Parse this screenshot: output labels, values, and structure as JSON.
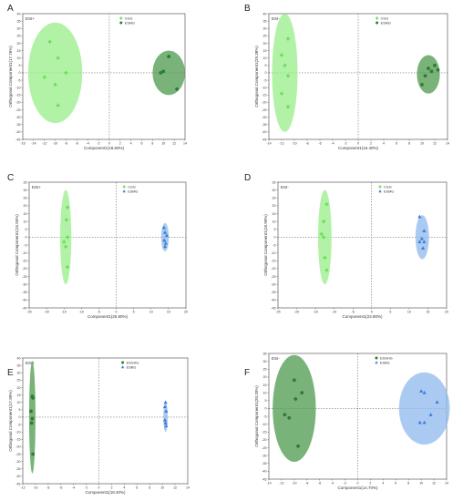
{
  "figure": {
    "panels": [
      {
        "letter": "A",
        "mode": "ESI+"
      },
      {
        "letter": "B",
        "mode": "ESI-"
      },
      {
        "letter": "C",
        "mode": "ESI+"
      },
      {
        "letter": "D",
        "mode": "ESI-"
      },
      {
        "letter": "E",
        "mode": "ESI+"
      },
      {
        "letter": "F",
        "mode": "ESI-"
      }
    ]
  },
  "colors": {
    "green_light": "#66dd55",
    "green_dark": "#2e7d32",
    "blue": "#3a7fd5",
    "blue_fill": "#8fb8ee",
    "green_fill": "#98ee88",
    "dark_green_fill": "#4c9a4c"
  },
  "chart_data": [
    {
      "type": "scatter",
      "panel": "A",
      "mode": "ESI+",
      "xlabel": "Component1(18.60%)",
      "ylabel": "Orthogonal Component1(17.76%)",
      "xlim": [
        -16,
        14
      ],
      "ylim": [
        -45,
        40
      ],
      "xticks": [
        -16,
        -14,
        -12,
        -10,
        -8,
        -6,
        -4,
        -2,
        0,
        2,
        4,
        6,
        8,
        10,
        12,
        14
      ],
      "yticks": [
        -45,
        -40,
        -35,
        -30,
        -25,
        -20,
        -15,
        -10,
        -5,
        0,
        5,
        10,
        15,
        20,
        25,
        30,
        35,
        40
      ],
      "series": [
        {
          "name": "CGG",
          "marker": "plus",
          "color": "#66dd55",
          "fill": "#98ee88",
          "x": [
            -11,
            -9.5,
            -8,
            -12,
            -10,
            -9.5
          ],
          "y": [
            21,
            10,
            0,
            -3,
            -8,
            -22
          ],
          "ellipse": {
            "cx": -10,
            "cy": 0,
            "rx": 5,
            "ry": 34
          }
        },
        {
          "name": "ESMG",
          "marker": "circle",
          "color": "#2e7d32",
          "fill": "#4c9a4c",
          "x": [
            11,
            10,
            12.5,
            9.5
          ],
          "y": [
            11,
            1,
            -11,
            0
          ],
          "ellipse": {
            "cx": 11,
            "cy": 0,
            "rx": 3,
            "ry": 15
          }
        }
      ]
    },
    {
      "type": "scatter",
      "panel": "B",
      "mode": "ESI-",
      "xlabel": "Component1(16.40%)",
      "ylabel": "Orthogonal Component1(29.38%)",
      "xlim": [
        -14,
        14
      ],
      "ylim": [
        -45,
        40
      ],
      "xticks": [
        -14,
        -12,
        -10,
        -8,
        -6,
        -4,
        -2,
        0,
        2,
        4,
        6,
        8,
        10,
        12,
        14
      ],
      "yticks": [
        -45,
        -40,
        -35,
        -30,
        -25,
        -20,
        -15,
        -10,
        -5,
        0,
        5,
        10,
        15,
        20,
        25,
        30,
        35,
        40
      ],
      "series": [
        {
          "name": "CGG",
          "marker": "plus",
          "color": "#66dd55",
          "fill": "#98ee88",
          "x": [
            -11,
            -12,
            -11.5,
            -11,
            -12,
            -11
          ],
          "y": [
            23,
            12,
            5,
            -2,
            -14,
            -23
          ],
          "ellipse": {
            "cx": -11.5,
            "cy": 0,
            "rx": 2,
            "ry": 40
          }
        },
        {
          "name": "ESMG",
          "marker": "circle",
          "color": "#2e7d32",
          "fill": "#4c9a4c",
          "x": [
            12,
            11,
            10.5,
            10,
            11.5,
            12.5
          ],
          "y": [
            5,
            3,
            -2,
            -8,
            1,
            2
          ],
          "ellipse": {
            "cx": 11,
            "cy": -1,
            "rx": 1.8,
            "ry": 13
          }
        }
      ]
    },
    {
      "type": "scatter",
      "panel": "C",
      "mode": "ESI+",
      "xlabel": "Component1(25.80%)",
      "ylabel": "Orthogonal Component1(15.50%)",
      "xlim": [
        -25,
        20
      ],
      "ylim": [
        -45,
        35
      ],
      "xticks": [
        -25,
        -20,
        -15,
        -10,
        -5,
        0,
        5,
        10,
        15,
        20
      ],
      "yticks": [
        -45,
        -40,
        -35,
        -30,
        -25,
        -20,
        -15,
        -10,
        -5,
        0,
        5,
        10,
        15,
        20,
        25,
        30,
        35
      ],
      "series": [
        {
          "name": "CGG",
          "marker": "plus",
          "color": "#66dd55",
          "fill": "#98ee88",
          "x": [
            -14,
            -14.3,
            -14,
            -15,
            -14.5,
            -14
          ],
          "y": [
            19,
            11,
            0,
            -3,
            -6,
            -19
          ],
          "ellipse": {
            "cx": -14.5,
            "cy": 0,
            "rx": 1.6,
            "ry": 30
          }
        },
        {
          "name": "ESMG",
          "marker": "triangle",
          "color": "#3a7fd5",
          "fill": "#8fb8ee",
          "x": [
            13.7,
            14,
            14.5,
            13.8,
            14.2,
            14
          ],
          "y": [
            6,
            3,
            1,
            -2,
            -4,
            -6
          ],
          "ellipse": {
            "cx": 14,
            "cy": 0,
            "rx": 1.1,
            "ry": 9
          }
        }
      ]
    },
    {
      "type": "scatter",
      "panel": "D",
      "mode": "ESI-",
      "xlabel": "Component1(22.80%)",
      "ylabel": "Orthogonal Component1(18.90%)",
      "xlim": [
        -25,
        20
      ],
      "ylim": [
        -45,
        35
      ],
      "xticks": [
        -25,
        -20,
        -15,
        -10,
        -5,
        0,
        5,
        10,
        15,
        20
      ],
      "yticks": [
        -45,
        -40,
        -35,
        -30,
        -25,
        -20,
        -15,
        -10,
        -5,
        0,
        5,
        10,
        15,
        20,
        25,
        30,
        35
      ],
      "series": [
        {
          "name": "CGG",
          "marker": "plus",
          "color": "#66dd55",
          "fill": "#98ee88",
          "x": [
            -12,
            -12.8,
            -13.4,
            -12.8,
            -12.5,
            -12
          ],
          "y": [
            21,
            10,
            2,
            0,
            -13,
            -21
          ],
          "ellipse": {
            "cx": -12.5,
            "cy": 0,
            "rx": 1.8,
            "ry": 30
          }
        },
        {
          "name": "ESMG",
          "marker": "triangle",
          "color": "#3a7fd5",
          "fill": "#8fb8ee",
          "x": [
            12.8,
            14,
            13.4,
            12.8,
            14,
            13.7
          ],
          "y": [
            13,
            4,
            -1,
            -3,
            -3,
            -7
          ],
          "ellipse": {
            "cx": 13.5,
            "cy": 0,
            "rx": 1.8,
            "ry": 14
          }
        }
      ]
    },
    {
      "type": "scatter",
      "panel": "E",
      "mode": "ESI+",
      "xlabel": "Component1(18.40%)",
      "ylabel": "Orthogonal Component1(17.90%)",
      "xlim": [
        -12,
        14
      ],
      "ylim": [
        -45,
        40
      ],
      "xticks": [
        -12,
        -10,
        -8,
        -6,
        -4,
        -2,
        0,
        2,
        4,
        6,
        8,
        10,
        12,
        14
      ],
      "yticks": [
        -45,
        -40,
        -35,
        -30,
        -25,
        -20,
        -15,
        -10,
        -5,
        0,
        5,
        10,
        15,
        20,
        25,
        30,
        35,
        40
      ],
      "series": [
        {
          "name": "ESGHG",
          "marker": "circle",
          "color": "#2e7d32",
          "fill": "#4c9a4c",
          "x": [
            -10.5,
            -10.4,
            -10.7,
            -10.5,
            -10.6,
            -10.4
          ],
          "y": [
            14,
            13,
            4,
            -1,
            -4,
            -25
          ],
          "ellipse": {
            "cx": -10.5,
            "cy": 0,
            "rx": 0.5,
            "ry": 38
          }
        },
        {
          "name": "ESBG",
          "marker": "triangle",
          "color": "#3a7fd5",
          "fill": "#8fb8ee",
          "x": [
            10.5,
            10.4,
            10.6,
            10.4,
            10.5,
            10.6
          ],
          "y": [
            10,
            7,
            4,
            -2,
            -4,
            -6
          ],
          "ellipse": {
            "cx": 10.5,
            "cy": 0,
            "rx": 0.35,
            "ry": 10
          }
        }
      ]
    },
    {
      "type": "scatter",
      "panel": "F",
      "mode": "ESI-",
      "xlabel": "Component1(14.70%)",
      "ylabel": "Orthogonal Component1(20.20%)",
      "xlim": [
        -14,
        14
      ],
      "ylim": [
        -45,
        35
      ],
      "xticks": [
        -14,
        -12,
        -10,
        -8,
        -6,
        -4,
        -2,
        0,
        2,
        4,
        6,
        8,
        10,
        12,
        14
      ],
      "yticks": [
        -45,
        -40,
        -35,
        -30,
        -25,
        -20,
        -15,
        -10,
        -5,
        0,
        5,
        10,
        15,
        20,
        25,
        30,
        35
      ],
      "series": [
        {
          "name": "ESGHG",
          "marker": "circle",
          "color": "#2e7d32",
          "fill": "#4c9a4c",
          "x": [
            -10,
            -8.8,
            -9.8,
            -11.5,
            -10.8,
            -9.4
          ],
          "y": [
            18,
            10,
            6,
            -4,
            -6,
            -24
          ],
          "ellipse": {
            "cx": -10,
            "cy": 0,
            "rx": 3.4,
            "ry": 34
          }
        },
        {
          "name": "ESBG",
          "marker": "triangle",
          "color": "#3a7fd5",
          "fill": "#8fb8ee",
          "x": [
            10,
            10.5,
            12.5,
            11.5,
            10.5,
            9.8
          ],
          "y": [
            11,
            10,
            4,
            -4,
            -9,
            -9
          ],
          "ellipse": {
            "cx": 10.5,
            "cy": 0,
            "rx": 4,
            "ry": 23
          }
        }
      ]
    }
  ]
}
